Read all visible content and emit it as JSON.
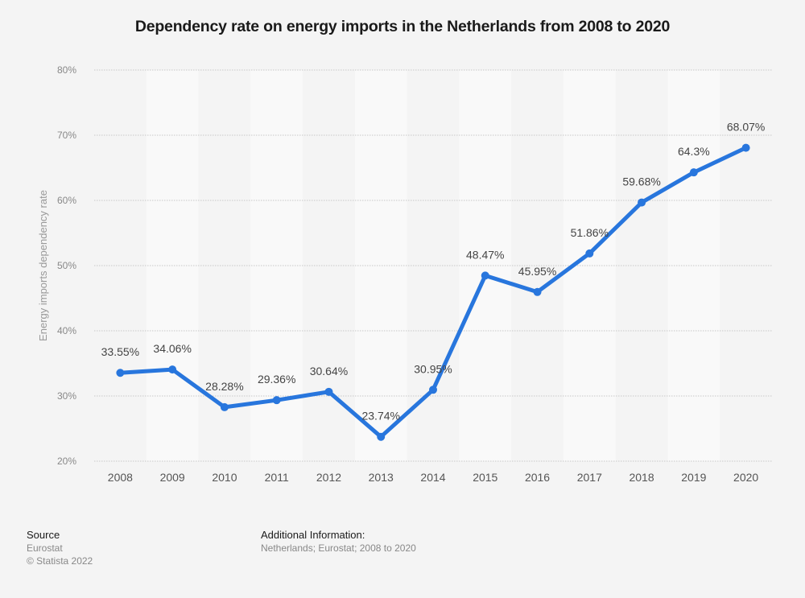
{
  "chart_data": {
    "type": "line",
    "title": "Dependency rate on energy imports in the Netherlands from 2008 to 2020",
    "xlabel": "",
    "ylabel": "Energy imports dependency rate",
    "categories": [
      "2008",
      "2009",
      "2010",
      "2011",
      "2012",
      "2013",
      "2014",
      "2015",
      "2016",
      "2017",
      "2018",
      "2019",
      "2020"
    ],
    "series": [
      {
        "name": "Energy imports dependency rate",
        "values": [
          33.55,
          34.06,
          28.28,
          29.36,
          30.64,
          23.74,
          30.95,
          48.47,
          45.95,
          51.86,
          59.68,
          64.3,
          68.07
        ],
        "labels": [
          "33.55%",
          "34.06%",
          "28.28%",
          "29.36%",
          "30.64%",
          "23.74%",
          "30.95%",
          "48.47%",
          "45.95%",
          "51.86%",
          "59.68%",
          "64.3%",
          "68.07%"
        ],
        "color": "#2876dd"
      }
    ],
    "ylim": [
      20,
      80
    ],
    "yticks": [
      20,
      30,
      40,
      50,
      60,
      70,
      80
    ],
    "ytick_labels": [
      "20%",
      "30%",
      "40%",
      "50%",
      "60%",
      "70%",
      "80%"
    ],
    "grid": true,
    "legend": "none"
  },
  "footer": {
    "source_heading": "Source",
    "source_name": "Eurostat",
    "copyright": "© Statista 2022",
    "additional_heading": "Additional Information:",
    "additional_text": "Netherlands; Eurostat; 2008 to 2020"
  },
  "colors": {
    "background": "#f4f4f4",
    "band_light": "#f9f9f9",
    "line": "#2876dd"
  }
}
